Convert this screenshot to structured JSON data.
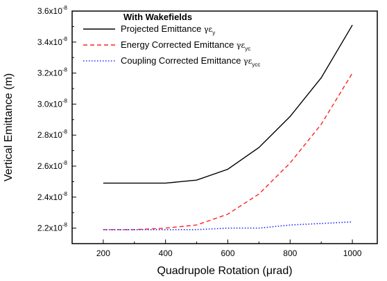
{
  "chart_data": {
    "type": "line",
    "title": "",
    "xlabel": "Quadrupole Rotation (μrad)",
    "ylabel": "Vertical Emittance (m)",
    "xlim": [
      100,
      1080
    ],
    "ylim": [
      2.1e-08,
      3.6e-08
    ],
    "x_ticks": [
      200,
      400,
      600,
      800,
      1000
    ],
    "y_ticks": [
      {
        "value": 2.2e-08,
        "mantissa": "2.2x10",
        "exp": "-8"
      },
      {
        "value": 2.4e-08,
        "mantissa": "2.4x10",
        "exp": "-8"
      },
      {
        "value": 2.6e-08,
        "mantissa": "2.6x10",
        "exp": "-8"
      },
      {
        "value": 2.8e-08,
        "mantissa": "2.8x10",
        "exp": "-8"
      },
      {
        "value": 3e-08,
        "mantissa": "3.0x10",
        "exp": "-8"
      },
      {
        "value": 3.2e-08,
        "mantissa": "3.2x10",
        "exp": "-8"
      },
      {
        "value": 3.4e-08,
        "mantissa": "3.4x10",
        "exp": "-8"
      },
      {
        "value": 3.6e-08,
        "mantissa": "3.6x10",
        "exp": "-8"
      }
    ],
    "legend_title": "With Wakefields",
    "legend_position": "top-left",
    "x": [
      200,
      300,
      400,
      500,
      600,
      700,
      800,
      900,
      1000
    ],
    "series": [
      {
        "name": "Projected Emittance",
        "symbol_base": "γε",
        "symbol_sub": "y",
        "color": "#000000",
        "dash": "solid",
        "values": [
          2.49e-08,
          2.49e-08,
          2.49e-08,
          2.51e-08,
          2.58e-08,
          2.72e-08,
          2.92e-08,
          3.17e-08,
          3.51e-08
        ]
      },
      {
        "name": "Energy Corrected Emittance",
        "symbol_base": "γε",
        "symbol_sub": "yc",
        "color": "#ff2020",
        "dash": "dashed",
        "values": [
          2.19e-08,
          2.19e-08,
          2.2e-08,
          2.22e-08,
          2.29e-08,
          2.42e-08,
          2.62e-08,
          2.87e-08,
          3.2e-08
        ]
      },
      {
        "name": "Coupling Corrected Emittance",
        "symbol_base": "γε",
        "symbol_sub": "ycc",
        "color": "#2020ff",
        "dash": "dotted",
        "values": [
          2.19e-08,
          2.19e-08,
          2.19e-08,
          2.19e-08,
          2.2e-08,
          2.2e-08,
          2.22e-08,
          2.23e-08,
          2.24e-08
        ]
      }
    ],
    "grid": false
  }
}
